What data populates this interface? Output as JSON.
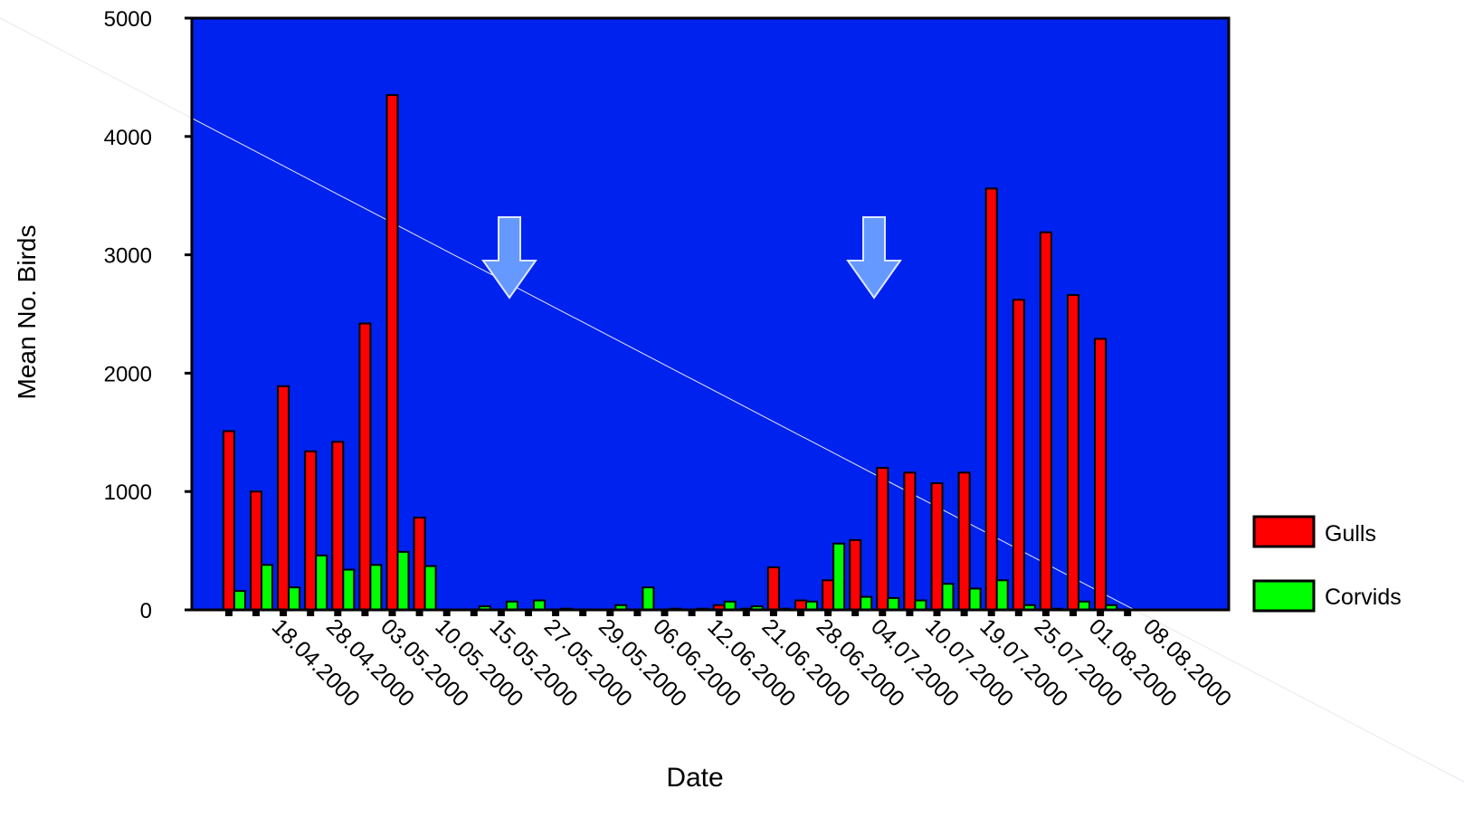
{
  "chart_data": {
    "type": "bar",
    "title": "",
    "xlabel": "Date",
    "ylabel": "Mean No. Birds",
    "ylim": [
      0,
      5000
    ],
    "yticks": [
      0,
      1000,
      2000,
      3000,
      4000,
      5000
    ],
    "categories": [
      "18.04.2000",
      "28.04.2000",
      "03.05.2000",
      "10.05.2000",
      "15.05.2000",
      "27.05.2000",
      "29.05.2000",
      "06.06.2000",
      "12.06.2000",
      "21.06.2000",
      "28.06.2000",
      "04.07.2000",
      "10.07.2000",
      "19.07.2000",
      "25.07.2000",
      "01.08.2000",
      "08.08.2000"
    ],
    "legend_position": "right",
    "grid": false,
    "series": [
      {
        "name": "Gulls",
        "color": "#ff0000",
        "values": [
          [
            1510,
            1000
          ],
          [
            1890,
            1340
          ],
          [
            1420,
            2420
          ],
          [
            4350,
            780
          ],
          [
            0,
            0
          ],
          [
            0,
            0
          ],
          [
            0,
            0
          ],
          [
            0,
            0
          ],
          [
            0,
            0
          ],
          [
            40,
            10
          ],
          [
            360,
            80
          ],
          [
            250,
            590
          ],
          [
            1200,
            1160
          ],
          [
            1070,
            1160
          ],
          [
            3560,
            2620
          ],
          [
            3190,
            2660
          ],
          [
            2290,
            0
          ]
        ]
      },
      {
        "name": "Corvids",
        "color": "#00ff00",
        "values": [
          [
            160,
            380
          ],
          [
            190,
            460
          ],
          [
            340,
            380
          ],
          [
            490,
            370
          ],
          [
            0,
            30
          ],
          [
            70,
            80
          ],
          [
            10,
            0
          ],
          [
            40,
            190
          ],
          [
            10,
            10
          ],
          [
            70,
            30
          ],
          [
            10,
            70
          ],
          [
            560,
            110
          ],
          [
            100,
            80
          ],
          [
            220,
            180
          ],
          [
            250,
            40
          ],
          [
            10,
            70
          ],
          [
            40,
            0
          ]
        ]
      }
    ],
    "annotations": [
      "down-arrow",
      "down-arrow"
    ],
    "colors": {
      "plot_background": "#0022ee",
      "arrow": "#6699ff"
    }
  }
}
